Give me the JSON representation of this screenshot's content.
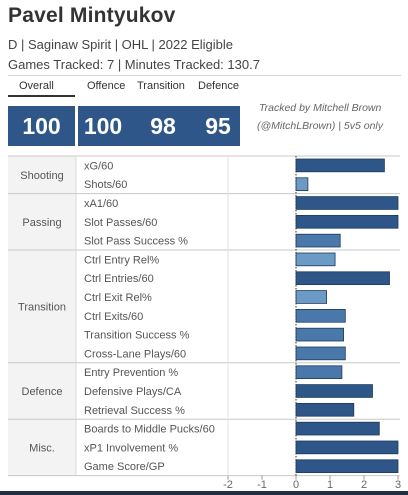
{
  "header": {
    "name": "Pavel Mintyukov",
    "subtitle": "D | Saginaw Spirit | OHL | 2022 Eligible",
    "games": "Games Tracked: 7 | Minutes Tracked: 130.7"
  },
  "scores": {
    "overall_label": "Overall",
    "overall": "100",
    "offence_label": "Offence",
    "offence": "100",
    "transition_label": "Transition",
    "transition": "98",
    "defence_label": "Defence",
    "defence": "95"
  },
  "credit": {
    "line1": "Tracked by Mitchell Brown",
    "line2": "(@MitchLBrown) | 5v5 only"
  },
  "colors": {
    "bar_dark": "#2e5688",
    "bar_light": "#6b9ac4",
    "score_box": "#2e5688"
  },
  "chart_data": {
    "type": "bar",
    "orientation": "horizontal",
    "xlim": [
      -2,
      3
    ],
    "xticks": [
      "-2",
      "-1",
      "0",
      "1",
      "2",
      "3"
    ],
    "groups": [
      {
        "name": "Shooting",
        "rows": [
          {
            "label": "xG/60",
            "value": 2.6
          },
          {
            "label": "Shots/60",
            "value": 0.35
          }
        ]
      },
      {
        "name": "Passing",
        "rows": [
          {
            "label": "xA1/60",
            "value": 3.1
          },
          {
            "label": "Slot Passes/60",
            "value": 3.1
          },
          {
            "label": "Slot Pass Success %",
            "value": 1.3
          }
        ]
      },
      {
        "name": "Transition",
        "rows": [
          {
            "label": "Ctrl Entry Rel%",
            "value": 1.15
          },
          {
            "label": "Ctrl Entries/60",
            "value": 2.75
          },
          {
            "label": "Ctrl Exit Rel%",
            "value": 0.9
          },
          {
            "label": "Ctrl Exits/60",
            "value": 1.45
          },
          {
            "label": "Transition Success %",
            "value": 1.4
          },
          {
            "label": "Cross-Lane Plays/60",
            "value": 1.45
          }
        ]
      },
      {
        "name": "Defence",
        "rows": [
          {
            "label": "Entry Prevention %",
            "value": 1.35
          },
          {
            "label": "Defensive Plays/CA",
            "value": 2.25
          },
          {
            "label": "Retrieval Success %",
            "value": 1.7
          }
        ]
      },
      {
        "name": "Misc.",
        "rows": [
          {
            "label": "Boards to Middle Pucks/60",
            "value": 2.45
          },
          {
            "label": "xP1 Involvement %",
            "value": 3.1
          },
          {
            "label": "Game Score/GP",
            "value": 3.05
          }
        ]
      }
    ]
  }
}
